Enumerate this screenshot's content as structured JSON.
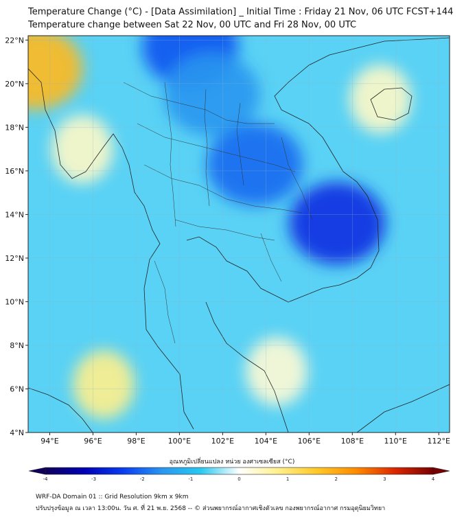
{
  "header": {
    "title_line1": "Temperature Change (°C) - [Data Assimilation] _ Initial Time : Friday 21 Nov, 06 UTC FCST+144",
    "title_line2": "Temperature change between Sat 22 Nov, 00 UTC and Fri 28 Nov, 00 UTC"
  },
  "map": {
    "lon_range": [
      93,
      112.5
    ],
    "lat_range": [
      4,
      22.2
    ],
    "lon_ticks": [
      "94°E",
      "96°E",
      "98°E",
      "100°E",
      "102°E",
      "104°E",
      "106°E",
      "108°E",
      "110°E",
      "112°E"
    ],
    "lon_tick_values": [
      94,
      96,
      98,
      100,
      102,
      104,
      106,
      108,
      110,
      112
    ],
    "lat_ticks": [
      "22°N",
      "20°N",
      "18°N",
      "16°N",
      "14°N",
      "12°N",
      "10°N",
      "8°N",
      "6°N",
      "4°N"
    ],
    "lat_tick_values": [
      22,
      20,
      18,
      16,
      14,
      12,
      10,
      8,
      6,
      4
    ],
    "grid": true,
    "features": [
      {
        "name": "cold-core-cambodia-vietnam",
        "lon": 107.3,
        "lat": 13.6,
        "value": -2.6
      },
      {
        "name": "cold-north",
        "lon": 100.5,
        "lat": 21.7,
        "value": -2.2
      },
      {
        "name": "cold-northeast-thailand",
        "lon": 103.5,
        "lat": 16.3,
        "value": -2.0
      },
      {
        "name": "cold-laos-north",
        "lon": 101.5,
        "lat": 19.5,
        "value": -1.6
      },
      {
        "name": "warm-myanmar-coast",
        "lon": 93.3,
        "lat": 20.7,
        "value": 1.8
      },
      {
        "name": "warm-andaman-south",
        "lon": 96.5,
        "lat": 6.2,
        "value": 0.8
      },
      {
        "name": "warm-myanmar-west",
        "lon": 95.5,
        "lat": 17.0,
        "value": 0.4
      },
      {
        "name": "warm-hainan-east",
        "lon": 109.3,
        "lat": 19.3,
        "value": 0.4
      },
      {
        "name": "warm-gulf-south",
        "lon": 104.5,
        "lat": 6.8,
        "value": 0.3
      }
    ]
  },
  "colorbar": {
    "title": "อุณหภูมิเปลี่ยนแปลง หน่วย องศาเซลเซียส (°C)",
    "tick_labels": [
      "-4",
      "-3",
      "-2",
      "-1",
      "0",
      "1",
      "2",
      "3",
      "4"
    ],
    "tick_values": [
      -4,
      -3,
      -2,
      -1,
      0,
      1,
      2,
      3,
      4
    ],
    "colors": [
      "#10005a",
      "#0000b4",
      "#0a3cf0",
      "#2a96f0",
      "#28c8f0",
      "#ffffff",
      "#fff08c",
      "#ffc828",
      "#ff8c00",
      "#dc2800",
      "#780000"
    ]
  },
  "footer": {
    "line1": "WRF-DA Domain 01 :: Grid Resolution 9km x 9km",
    "line2": "ปรับปรุงข้อมูล ณ เวลา 13:00น. วัน ศ. ที่ 21 พ.ย. 2568 -- © ส่วนพยากรณ์อากาศเชิงตัวเลข กองพยากรณ์อากาศ กรมอุตุนิยมวิทยา"
  }
}
